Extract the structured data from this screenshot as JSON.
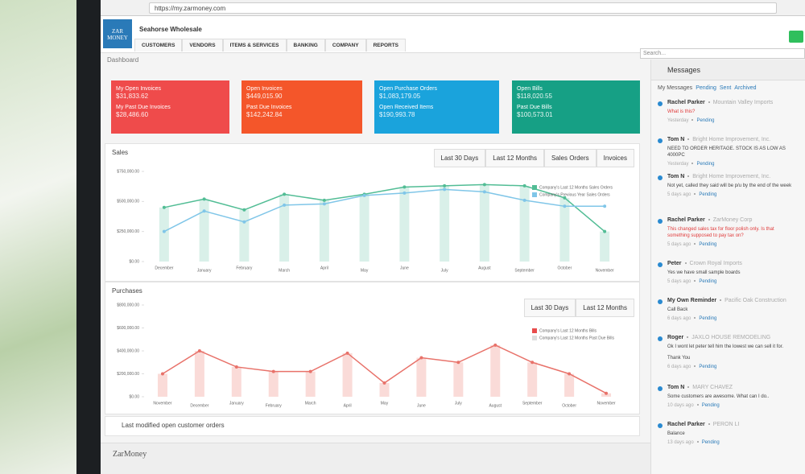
{
  "browser": {
    "url": "https://my.zarmoney.com"
  },
  "header": {
    "logo": "ZAR MONEY",
    "company": "Seahorse Wholesale",
    "search": "Search..."
  },
  "nav": [
    "CUSTOMERS",
    "VENDORS",
    "ITEMS & SERVICES",
    "BANKING",
    "COMPANY",
    "REPORTS"
  ],
  "page_title": "Dashboard",
  "cards": [
    {
      "color": "#ef4b4b",
      "lines": [
        "My Open Invoices",
        "$31,833.62",
        "My Past Due Invoices",
        "$28,486.60"
      ]
    },
    {
      "color": "#f4562a",
      "lines": [
        "Open Invoices",
        "$449,015.90",
        "Past Due Invoices",
        "$142,242.84"
      ]
    },
    {
      "color": "#1aa3dc",
      "lines": [
        "Open Purchase Orders",
        "$1,083,179.05",
        "Open Received Items",
        "$190,993.78"
      ]
    },
    {
      "color": "#16a085",
      "lines": [
        "Open Bills",
        "$118,020.55",
        "Past Due Bills",
        "$100,573.01"
      ]
    }
  ],
  "sales": {
    "title": "Sales",
    "tabs": [
      "Last 30 Days",
      "Last 12 Months",
      "Sales Orders",
      "Invoices"
    ],
    "chart_data": {
      "type": "line",
      "categories": [
        "December",
        "January",
        "February",
        "March",
        "April",
        "May",
        "June",
        "July",
        "August",
        "September",
        "October",
        "November"
      ],
      "series": [
        {
          "name": "Company's Last 12 Months Sales Orders",
          "color": "#52bd95",
          "bar_color": "#d9f0e9",
          "values": [
            450000,
            520000,
            430000,
            560000,
            510000,
            560000,
            620000,
            630000,
            640000,
            630000,
            530000,
            250000
          ]
        },
        {
          "name": "Company's Previous Year Sales Orders",
          "color": "#80c6e8",
          "values": [
            250000,
            420000,
            330000,
            470000,
            480000,
            550000,
            570000,
            600000,
            580000,
            510000,
            460000,
            460000
          ]
        }
      ],
      "ylim": [
        0,
        750000
      ],
      "yticks": [
        {
          "value": 0,
          "label": "$0.00"
        },
        {
          "value": 250000,
          "label": "$250,000.00"
        },
        {
          "value": 500000,
          "label": "$500,000.00"
        },
        {
          "value": 750000,
          "label": "$750,000.00"
        }
      ],
      "grid": false
    }
  },
  "purchases": {
    "title": "Purchases",
    "tabs": [
      "Last 30 Days",
      "Last 12 Months"
    ],
    "chart_data": {
      "type": "line",
      "categories": [
        "November",
        "December",
        "January",
        "February",
        "March",
        "April",
        "May",
        "June",
        "July",
        "August",
        "September",
        "October",
        "November"
      ],
      "series": [
        {
          "name": "Company's Last 12 Months Bills",
          "color": "#e8726a",
          "bar_color": "#fadbd8",
          "values": [
            200000,
            400000,
            260000,
            220000,
            220000,
            380000,
            120000,
            340000,
            300000,
            450000,
            300000,
            200000,
            30000
          ]
        }
      ],
      "legend": [
        "Company's Last 12 Months Bills",
        "Company's Last 12 Months Past Due Bills"
      ],
      "legend_colors": [
        "#e84c4c",
        "#dddddd"
      ],
      "ylim": [
        0,
        800000
      ],
      "yticks": [
        {
          "value": 0,
          "label": "$0.00"
        },
        {
          "value": 200000,
          "label": "$200,000.00"
        },
        {
          "value": 400000,
          "label": "$400,000.00"
        },
        {
          "value": 600000,
          "label": "$600,000.00"
        },
        {
          "value": 800000,
          "label": "$800,000.00"
        }
      ],
      "grid": false
    }
  },
  "orders_title": "Last modified open customer orders",
  "footer": "ZarMoney",
  "messages": {
    "title": "Messages",
    "tabs": [
      "My Messages",
      "Pending",
      "Sent",
      "Archived"
    ],
    "items": [
      {
        "sender": "Rachel Parker",
        "company": "Mountain Valley Imports",
        "text": [
          "What is this?"
        ],
        "alert": true,
        "time": "Yesterday",
        "status": "Pending"
      },
      {
        "sender": "Tom N",
        "company": "Bright Home Improvement, Inc.",
        "text": [
          "NEED TO ORDER HERITAGE. STOCK IS AS LOW AS 4000PC"
        ],
        "alert": false,
        "time": "Yesterday",
        "status": "Pending"
      },
      {
        "sender": "Tom N",
        "company": "Bright Home Improvement, Inc.",
        "text": [
          "Not yet, called they said will be p/u by the end of the week"
        ],
        "alert": false,
        "time": "5 days ago",
        "status": "Pending"
      },
      {
        "sender": "Rachel Parker",
        "company": "ZarMoney Corp",
        "text": [
          "This changed sales tax for floor polish only. Is that something supposed to pay tax on?"
        ],
        "alert": true,
        "time": "5 days ago",
        "status": "Pending"
      },
      {
        "sender": "Peter",
        "company": "Crown Royal Imports",
        "text": [
          "Yes we have small sample boards"
        ],
        "alert": false,
        "time": "5 days ago",
        "status": "Pending"
      },
      {
        "sender": "My Own Reminder",
        "company": "Pacific Oak Construction",
        "text": [
          "Call Back"
        ],
        "alert": false,
        "time": "6 days ago",
        "status": "Pending"
      },
      {
        "sender": "Roger",
        "company": "JAXLO HOUSE REMODELING",
        "text": [
          "Ok I wont let peter tell him the lowest we can sell it for.",
          "Thank You"
        ],
        "alert": false,
        "time": "6 days ago",
        "status": "Pending"
      },
      {
        "sender": "Tom N",
        "company": "MARY CHAVEZ",
        "text": [
          "Some customers are awesome. What can I do.."
        ],
        "alert": false,
        "time": "10 days ago",
        "status": "Pending"
      },
      {
        "sender": "Rachel Parker",
        "company": "PERON LI",
        "text": [
          "Balance"
        ],
        "alert": false,
        "time": "13 days ago",
        "status": "Pending"
      }
    ]
  }
}
